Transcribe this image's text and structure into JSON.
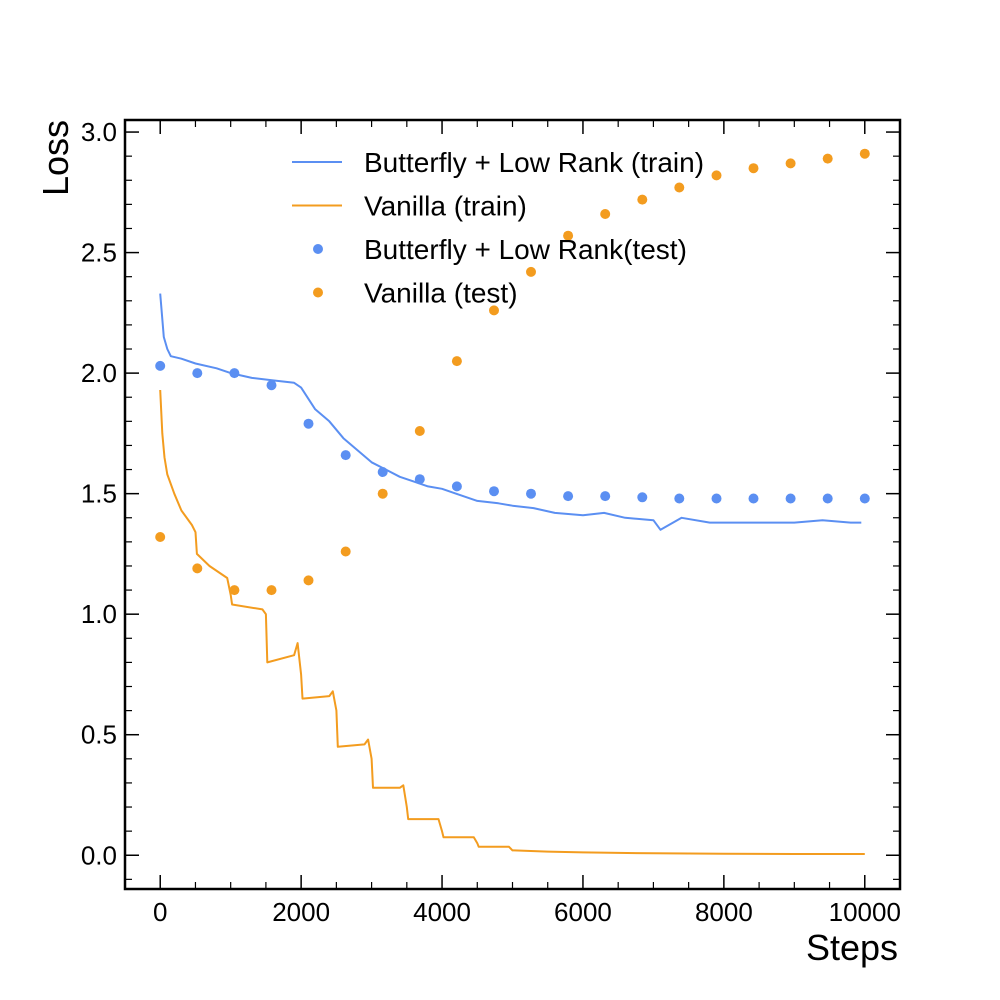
{
  "chart_data": {
    "type": "line",
    "title": "",
    "xlabel": "Steps",
    "ylabel": "Loss",
    "xlim": [
      -500,
      10500
    ],
    "ylim": [
      -0.14,
      3.05
    ],
    "xticks": [
      "0",
      "2000",
      "4000",
      "6000",
      "8000",
      "10000"
    ],
    "yticks": [
      "0.0",
      "0.5",
      "1.0",
      "1.5",
      "2.0",
      "2.5",
      "3.0"
    ],
    "grid": false,
    "legend_position": "top-right",
    "series": [
      {
        "name": "Butterfly + Low Rank (train)",
        "kind": "line",
        "color": "#5b8ff2",
        "x": [
          0,
          50,
          100,
          150,
          300,
          500,
          800,
          1000,
          1300,
          1600,
          1900,
          2000,
          2200,
          2400,
          2600,
          2800,
          3000,
          3200,
          3400,
          3600,
          3800,
          4000,
          4200,
          4500,
          4800,
          5000,
          5300,
          5600,
          6000,
          6300,
          6600,
          7000,
          7100,
          7400,
          7800,
          8200,
          8600,
          9000,
          9400,
          9800,
          9950
        ],
        "y": [
          2.33,
          2.15,
          2.1,
          2.07,
          2.06,
          2.04,
          2.02,
          2.0,
          1.98,
          1.97,
          1.96,
          1.94,
          1.85,
          1.8,
          1.73,
          1.68,
          1.63,
          1.6,
          1.57,
          1.55,
          1.53,
          1.52,
          1.5,
          1.47,
          1.46,
          1.45,
          1.44,
          1.42,
          1.41,
          1.42,
          1.4,
          1.39,
          1.35,
          1.4,
          1.38,
          1.38,
          1.38,
          1.38,
          1.39,
          1.38,
          1.38
        ]
      },
      {
        "name": "Vanilla (train)",
        "kind": "line",
        "color": "#f39c1f",
        "x": [
          0,
          30,
          60,
          100,
          200,
          300,
          450,
          500,
          520,
          700,
          950,
          1000,
          1020,
          1450,
          1500,
          1520,
          1900,
          1950,
          2000,
          2020,
          2400,
          2450,
          2500,
          2520,
          2900,
          2950,
          3000,
          3020,
          3400,
          3450,
          3500,
          3520,
          3950,
          4000,
          4020,
          4450,
          4500,
          4520,
          4950,
          5000,
          5020,
          5500,
          6000,
          7000,
          8000,
          9000,
          10000
        ],
        "y": [
          1.93,
          1.75,
          1.65,
          1.58,
          1.5,
          1.43,
          1.37,
          1.34,
          1.25,
          1.2,
          1.15,
          1.08,
          1.04,
          1.02,
          1.0,
          0.8,
          0.83,
          0.88,
          0.75,
          0.65,
          0.66,
          0.68,
          0.6,
          0.45,
          0.46,
          0.48,
          0.4,
          0.28,
          0.28,
          0.29,
          0.2,
          0.15,
          0.15,
          0.1,
          0.075,
          0.075,
          0.05,
          0.035,
          0.035,
          0.02,
          0.02,
          0.015,
          0.012,
          0.008,
          0.006,
          0.005,
          0.005
        ]
      },
      {
        "name": "Butterfly + Low Rank(test)",
        "kind": "scatter",
        "color": "#5b8ff2",
        "x": [
          0,
          526,
          1053,
          1579,
          2105,
          2632,
          3158,
          3684,
          4211,
          4737,
          5263,
          5789,
          6316,
          6842,
          7368,
          7895,
          8421,
          8947,
          9474,
          10000
        ],
        "y": [
          2.03,
          2.0,
          2.0,
          1.95,
          1.79,
          1.66,
          1.59,
          1.56,
          1.53,
          1.51,
          1.5,
          1.49,
          1.49,
          1.485,
          1.48,
          1.48,
          1.48,
          1.48,
          1.48,
          1.48
        ]
      },
      {
        "name": "Vanilla (test)",
        "kind": "scatter",
        "color": "#f39c1f",
        "x": [
          0,
          526,
          1053,
          1579,
          2105,
          2632,
          3158,
          3684,
          4211,
          4737,
          5263,
          5789,
          6316,
          6842,
          7368,
          7895,
          8421,
          8947,
          9474,
          10000
        ],
        "y": [
          1.32,
          1.19,
          1.1,
          1.1,
          1.14,
          1.26,
          1.5,
          1.76,
          2.05,
          2.26,
          2.42,
          2.57,
          2.66,
          2.72,
          2.77,
          2.82,
          2.85,
          2.87,
          2.89,
          2.91
        ]
      }
    ]
  }
}
